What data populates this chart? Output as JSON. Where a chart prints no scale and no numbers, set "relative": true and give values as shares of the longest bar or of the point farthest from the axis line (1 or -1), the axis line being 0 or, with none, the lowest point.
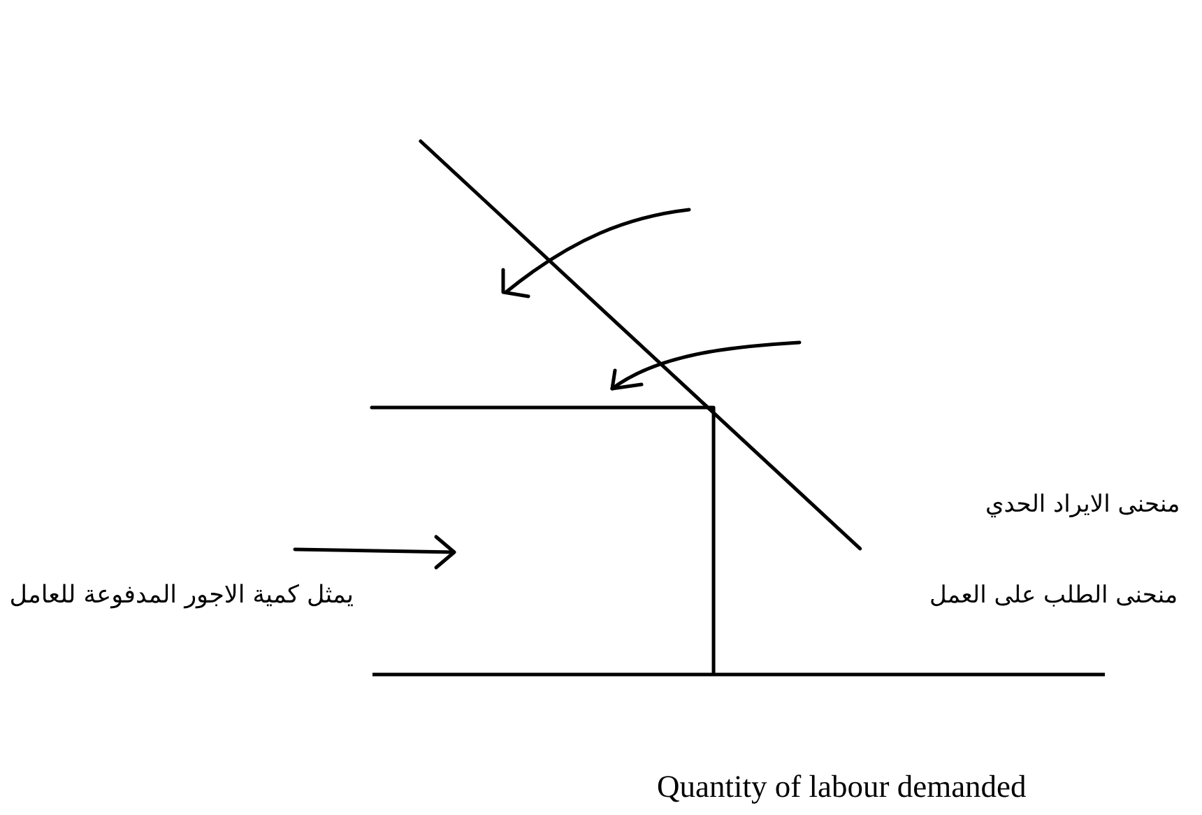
{
  "chart_data": {
    "type": "line",
    "relative": true,
    "categories": [
      null,
      null,
      null,
      null,
      null,
      null,
      null,
      null,
      null,
      null,
      null,
      null,
      null,
      null,
      null,
      null
    ],
    "series": [
      {
        "color": "#000000",
        "values": [
          null,
          1,
          0.915,
          0.83,
          0.745,
          0.66,
          0.575,
          0.49,
          0.405,
          0.32,
          0.235,
          null,
          null,
          null,
          null,
          null
        ]
      },
      {
        "type": "step",
        "color": "#000000",
        "values": [
          0.5,
          0.5,
          0.5,
          0.5,
          0.5,
          0.5,
          0.5,
          0,
          null,
          null,
          null,
          null,
          null,
          null,
          null,
          null
        ]
      }
    ],
    "annotations": [
      "منحنى الايراد الحدي",
      "منحنى الطلب على العمل",
      "يمثل كمية الاجور المدفوعة للعامل",
      "Quantity of labour demanded"
    ]
  }
}
